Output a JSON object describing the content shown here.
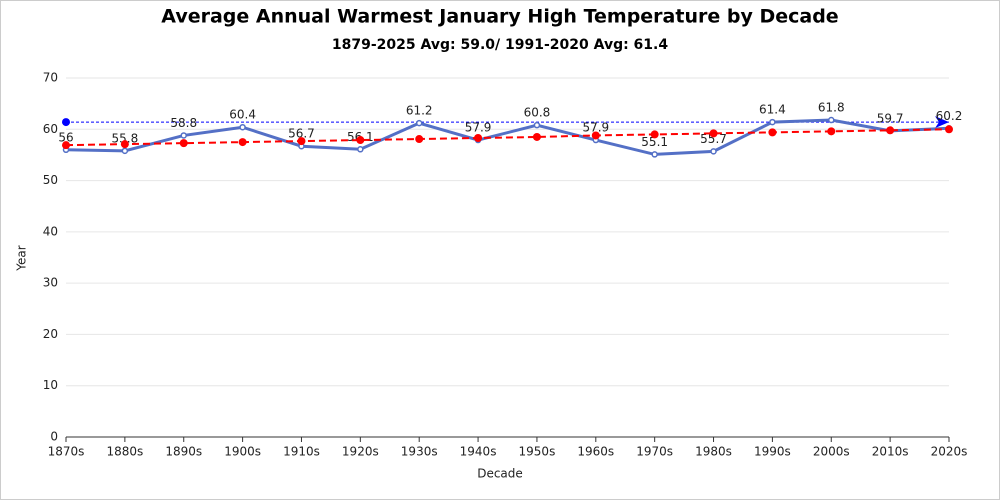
{
  "chart_data": {
    "type": "line",
    "title": "Average Annual Warmest January High Temperature by Decade",
    "subtitle": "1879-2025 Avg: 59.0/ 1991-2020 Avg: 61.4",
    "x_label": "Decade",
    "y_label": "Year",
    "categories": [
      "1870s",
      "1880s",
      "1890s",
      "1900s",
      "1910s",
      "1920s",
      "1930s",
      "1940s",
      "1950s",
      "1960s",
      "1970s",
      "1980s",
      "1990s",
      "2000s",
      "2010s",
      "2020s"
    ],
    "series": [
      {
        "color": "#5470c6",
        "values": [
          56,
          55.8,
          58.8,
          60.4,
          56.7,
          56.1,
          61.2,
          57.9,
          60.8,
          57.9,
          55.1,
          55.7,
          61.4,
          61.8,
          59.7,
          60.2
        ],
        "labels": true,
        "style": "solid"
      },
      {
        "color": "#ff0000",
        "values": [
          56.9,
          57.1,
          57.3,
          57.5,
          57.7,
          57.9,
          58.1,
          58.3,
          58.5,
          58.8,
          59.0,
          59.2,
          59.4,
          59.6,
          59.8,
          60.0
        ],
        "labels": false,
        "style": "dashed"
      }
    ],
    "reference_line": {
      "value": 61.4,
      "color": "#0000ff"
    },
    "ylim": [
      0,
      70
    ],
    "yticks": [
      0,
      10,
      20,
      30,
      40,
      50,
      60,
      70
    ],
    "grid": true
  }
}
